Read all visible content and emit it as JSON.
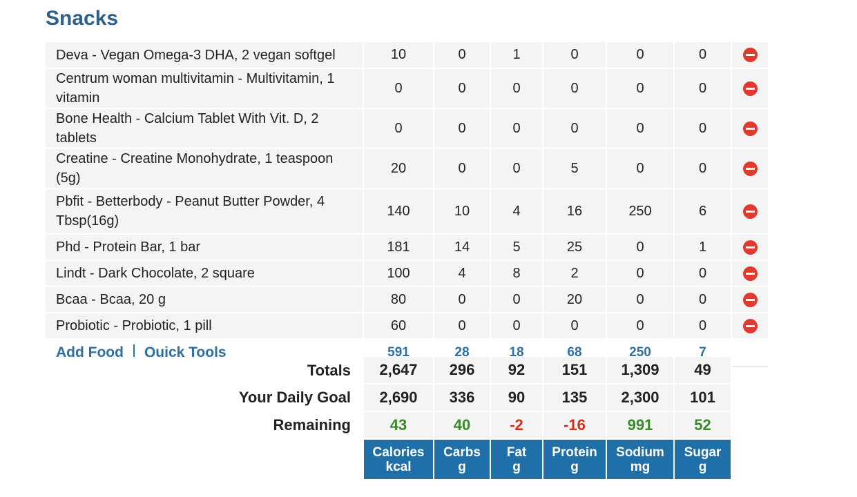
{
  "section_title": "Snacks",
  "food_rows": [
    {
      "name": "Deva - Vegan Omega-3 DHA, 2 vegan softgel",
      "values": [
        "10",
        "0",
        "1",
        "0",
        "0",
        "0"
      ]
    },
    {
      "name": "Centrum woman multivitamin - Multivitamin, 1 vitamin",
      "values": [
        "0",
        "0",
        "0",
        "0",
        "0",
        "0"
      ]
    },
    {
      "name": "Bone Health - Calcium Tablet With Vit. D, 2 tablets",
      "values": [
        "0",
        "0",
        "0",
        "0",
        "0",
        "0"
      ]
    },
    {
      "name": "Creatine - Creatine Monohydrate, 1 teaspoon (5g)",
      "values": [
        "20",
        "0",
        "0",
        "5",
        "0",
        "0"
      ]
    },
    {
      "name": "Pbfit - Betterbody - Peanut Butter Powder, 4 Tbsp(16g)",
      "values": [
        "140",
        "10",
        "4",
        "16",
        "250",
        "6"
      ]
    },
    {
      "name": "Phd - Protein Bar, 1 bar",
      "values": [
        "181",
        "14",
        "5",
        "25",
        "0",
        "1"
      ]
    },
    {
      "name": "Lindt - Dark Chocolate, 2 square",
      "values": [
        "100",
        "4",
        "8",
        "2",
        "0",
        "0"
      ]
    },
    {
      "name": "Bcaa - Bcaa, 20 g",
      "values": [
        "80",
        "0",
        "0",
        "20",
        "0",
        "0"
      ]
    },
    {
      "name": "Probiotic - Probiotic, 1 pill",
      "values": [
        "60",
        "0",
        "0",
        "0",
        "0",
        "0"
      ]
    }
  ],
  "meal_footer": {
    "add_food": "Add Food",
    "quick_tools": "Quick Tools",
    "sums": [
      "591",
      "28",
      "18",
      "68",
      "250",
      "7"
    ]
  },
  "totals": {
    "totals_label": "Totals",
    "totals": [
      "2,647",
      "296",
      "92",
      "151",
      "1,309",
      "49"
    ],
    "goal_label": "Your Daily Goal",
    "goal": [
      "2,690",
      "336",
      "90",
      "135",
      "2,300",
      "101"
    ],
    "remaining_label": "Remaining",
    "remaining": [
      "43",
      "40",
      "-2",
      "-16",
      "991",
      "52"
    ],
    "remaining_status": [
      "pos",
      "pos",
      "neg",
      "neg",
      "pos",
      "pos"
    ]
  },
  "nutrients": [
    {
      "name": "Calories",
      "unit": "kcal"
    },
    {
      "name": "Carbs",
      "unit": "g"
    },
    {
      "name": "Fat",
      "unit": "g"
    },
    {
      "name": "Protein",
      "unit": "g"
    },
    {
      "name": "Sodium",
      "unit": "mg"
    },
    {
      "name": "Sugar",
      "unit": "g"
    }
  ],
  "delete_icon": "minus-circle-icon",
  "colors": {
    "title": "#2e5f8a",
    "link": "#2e6fa3",
    "header_bg": "#1f6fa8",
    "positive": "#3b8a2a",
    "negative": "#d32f1e",
    "delete": "#e03a2e",
    "row_bg": "#f4f4f4"
  }
}
